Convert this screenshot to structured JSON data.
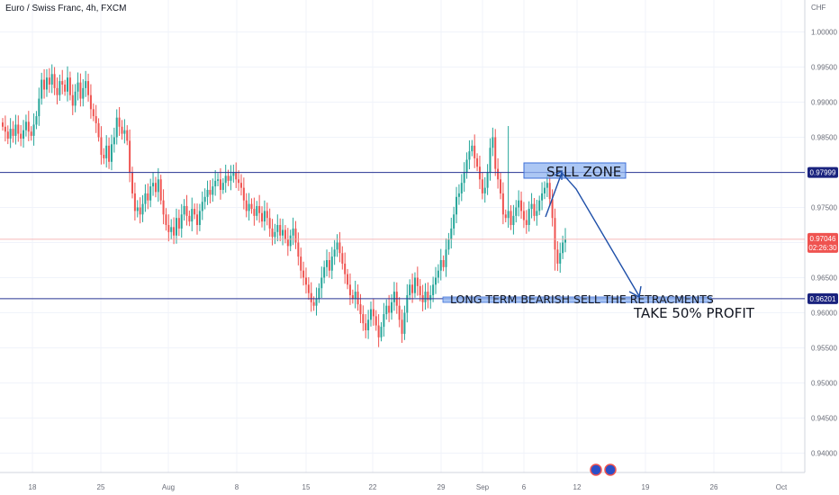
{
  "header": {
    "title": "Euro / Swiss Franc, 4h, FXCM",
    "currency": "CHF"
  },
  "colors": {
    "up": "#26a69a",
    "down": "#ef5350",
    "level_line": "#283593",
    "level_badge": "#1a237e",
    "price_badge": "#ef5350",
    "zone_fill": "#90b4f0",
    "zone_stroke": "#3d6fd8",
    "arrow": "#1e4fa8",
    "grid": "#f0f3fa",
    "axis_text": "#6a6d78"
  },
  "chart_data": {
    "type": "candlestick",
    "title": "Euro / Swiss Franc, 4h, FXCM",
    "x_ticks": [
      "18",
      "25",
      "Aug",
      "8",
      "15",
      "22",
      "29",
      "Sep",
      "6",
      "12",
      "19",
      "26",
      "Oct"
    ],
    "y_ticks": [
      "1.00000",
      "0.99500",
      "0.99000",
      "0.98500",
      "0.98000",
      "0.97500",
      "0.97000",
      "0.96500",
      "0.96000",
      "0.95500",
      "0.95000",
      "0.94500",
      "0.94000"
    ],
    "ylim": [
      0.9375,
      1.0035
    ],
    "grid": true,
    "closes": [
      0.9865,
      0.9858,
      0.9848,
      0.9862,
      0.9852,
      0.9868,
      0.9855,
      0.9848,
      0.986,
      0.9872,
      0.9858,
      0.9852,
      0.9868,
      0.988,
      0.9905,
      0.9932,
      0.9918,
      0.9935,
      0.9925,
      0.994,
      0.992,
      0.991,
      0.993,
      0.9925,
      0.9915,
      0.9935,
      0.991,
      0.9895,
      0.9915,
      0.9928,
      0.9905,
      0.992,
      0.993,
      0.991,
      0.989,
      0.988,
      0.987,
      0.985,
      0.9825,
      0.982,
      0.9838,
      0.9815,
      0.984,
      0.985,
      0.9878,
      0.9865,
      0.9855,
      0.986,
      0.9845,
      0.98,
      0.977,
      0.9745,
      0.975,
      0.974,
      0.9755,
      0.977,
      0.976,
      0.978,
      0.9785,
      0.9772,
      0.979,
      0.976,
      0.974,
      0.9725,
      0.9715,
      0.9722,
      0.971,
      0.9735,
      0.972,
      0.974,
      0.9752,
      0.9738,
      0.973,
      0.9748,
      0.974,
      0.9725,
      0.9745,
      0.9758,
      0.9765,
      0.9775,
      0.9768,
      0.978,
      0.9788,
      0.979,
      0.9775,
      0.9785,
      0.9795,
      0.9788,
      0.9795,
      0.98,
      0.979,
      0.9785,
      0.9778,
      0.976,
      0.9745,
      0.9755,
      0.9748,
      0.9738,
      0.9752,
      0.9742,
      0.973,
      0.9745,
      0.9735,
      0.972,
      0.9708,
      0.9715,
      0.9725,
      0.971,
      0.9718,
      0.9705,
      0.9695,
      0.971,
      0.972,
      0.97,
      0.968,
      0.966,
      0.965,
      0.964,
      0.9628,
      0.9615,
      0.961,
      0.962,
      0.9635,
      0.965,
      0.9665,
      0.9675,
      0.966,
      0.968,
      0.969,
      0.97,
      0.9685,
      0.967,
      0.9655,
      0.964,
      0.9625,
      0.962,
      0.963,
      0.9612,
      0.9598,
      0.9585,
      0.9575,
      0.959,
      0.9605,
      0.9595,
      0.9582,
      0.9565,
      0.958,
      0.9598,
      0.961,
      0.96,
      0.9615,
      0.963,
      0.961,
      0.959,
      0.957,
      0.96,
      0.9625,
      0.964,
      0.9628,
      0.965,
      0.9638,
      0.9625,
      0.9615,
      0.963,
      0.9618,
      0.9625,
      0.964,
      0.965,
      0.966,
      0.9675,
      0.9665,
      0.969,
      0.9705,
      0.972,
      0.974,
      0.9765,
      0.977,
      0.9785,
      0.98,
      0.9818,
      0.983,
      0.9838,
      0.982,
      0.9808,
      0.979,
      0.977,
      0.9778,
      0.98,
      0.9835,
      0.985,
      0.9805,
      0.979,
      0.977,
      0.974,
      0.9735,
      0.9745,
      0.9725,
      0.9738,
      0.975,
      0.976,
      0.9745,
      0.9732,
      0.9725,
      0.9748,
      0.9755,
      0.9738,
      0.9745,
      0.976,
      0.977,
      0.9778,
      0.9785,
      0.9762,
      0.9735,
      0.969,
      0.967,
      0.9685,
      0.97,
      0.9705
    ]
  },
  "price_axis": {
    "level_top": "0.97999",
    "level_bottom": "0.96201",
    "current_price": "0.97046",
    "countdown": "02:26:30"
  },
  "annotations": {
    "sell_zone": "SELL ZONE",
    "long_term": "LONG TERM BEARISH SELL THE RETRACMENTS",
    "take_profit": "TAKE 50% PROFIT"
  }
}
